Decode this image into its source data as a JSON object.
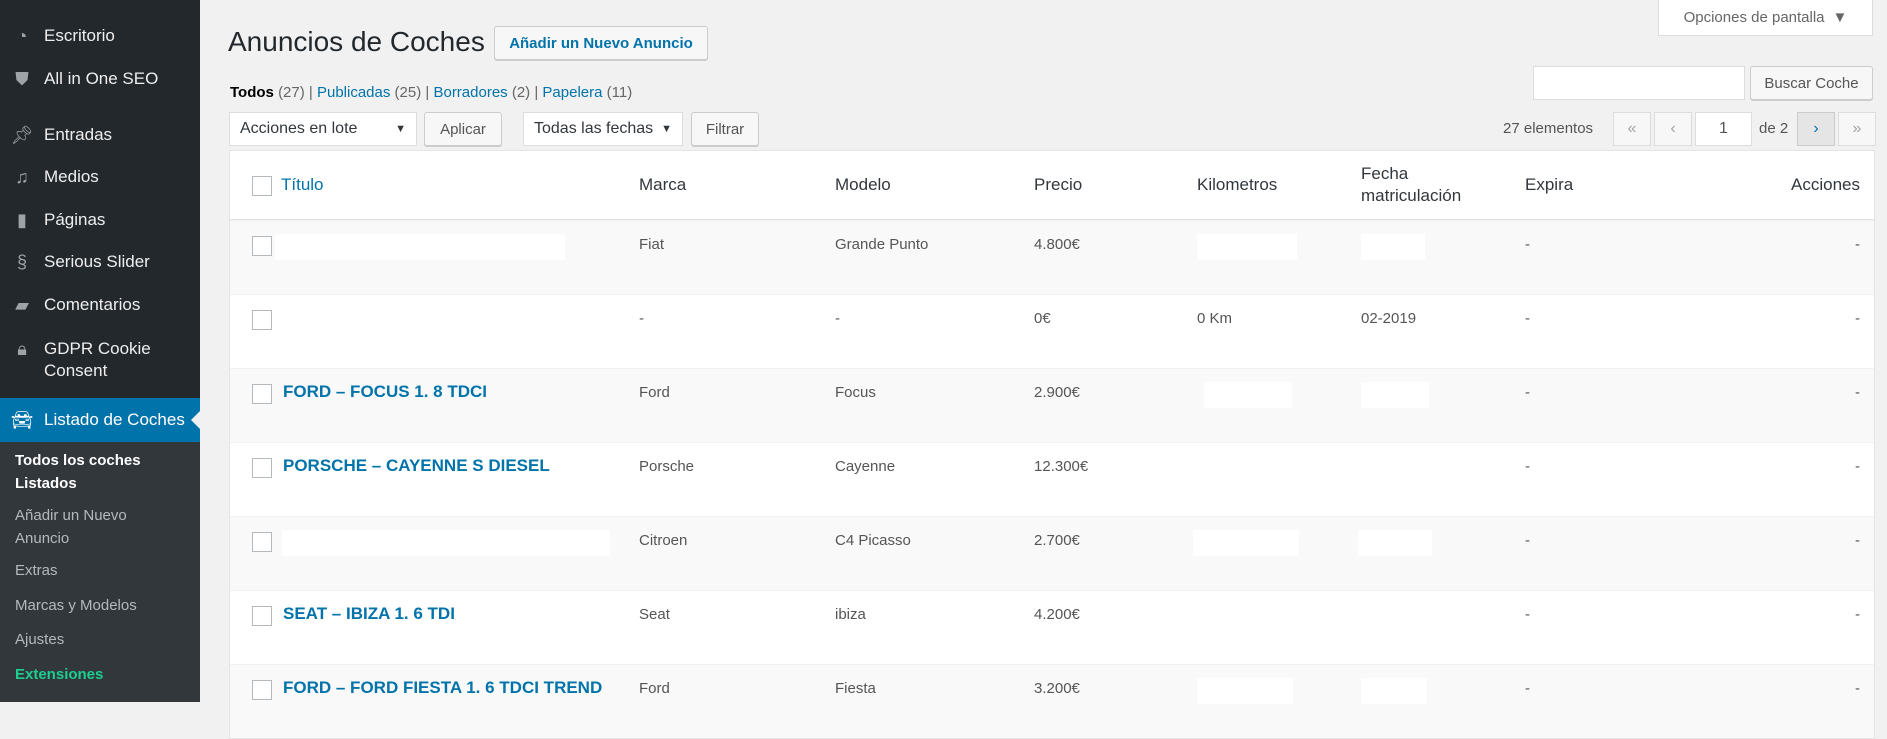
{
  "sidebar": {
    "items": [
      {
        "label": "Escritorio",
        "icon": "dashboard-icon"
      },
      {
        "label": "All in One SEO",
        "icon": "shield-icon"
      },
      {
        "label": "Entradas",
        "icon": "pin-icon"
      },
      {
        "label": "Medios",
        "icon": "media-icon"
      },
      {
        "label": "Páginas",
        "icon": "pages-icon"
      },
      {
        "label": "Serious Slider",
        "icon": "slider-icon"
      },
      {
        "label": "Comentarios",
        "icon": "comment-icon"
      },
      {
        "label": "GDPR Cookie Consent",
        "icon": "lock-icon"
      },
      {
        "label": "Listado de Coches",
        "icon": "car-icon",
        "active": true
      }
    ],
    "submenu": [
      "Todos los coches Listados",
      "Añadir un Nuevo Anuncio",
      "Extras",
      "Marcas y Modelos",
      "Ajustes",
      "Extensiones"
    ]
  },
  "header": {
    "title": "Anuncios de Coches",
    "add_new": "Añadir un Nuevo Anuncio",
    "screen_options": "Opciones de pantalla"
  },
  "views": [
    {
      "label": "Todos",
      "count": "(27)"
    },
    {
      "label": "Publicadas",
      "count": "(25)"
    },
    {
      "label": "Borradores",
      "count": "(2)"
    },
    {
      "label": "Papelera",
      "count": "(11)"
    }
  ],
  "toolbar": {
    "bulk": "Acciones en lote",
    "apply": "Aplicar",
    "dates": "Todas las fechas",
    "filter": "Filtrar",
    "search_button": "Buscar Coche",
    "search_value": "",
    "items": "27 elementos",
    "page": "1",
    "of": "de 2",
    "first": "«",
    "prev": "‹",
    "next": "›",
    "last": "»"
  },
  "columns": [
    "Título",
    "Marca",
    "Modelo",
    "Precio",
    "Kilometros",
    "Fecha matriculación",
    "Expira",
    "Acciones"
  ],
  "rows": [
    {
      "title": "",
      "marca": "Fiat",
      "modelo": "Grande Punto",
      "precio": "4.800€",
      "km": "",
      "fecha": "",
      "expira": "-",
      "acciones": "-"
    },
    {
      "title": "",
      "marca": "-",
      "modelo": "-",
      "precio": "0€",
      "km": "0 Km",
      "fecha": "02-2019",
      "expira": "-",
      "acciones": "-"
    },
    {
      "title": "FORD – FOCUS 1. 8 TDCI",
      "marca": "Ford",
      "modelo": "Focus",
      "precio": "2.900€",
      "km": "",
      "fecha": "",
      "expira": "-",
      "acciones": "-"
    },
    {
      "title": "PORSCHE – CAYENNE S DIESEL",
      "marca": "Porsche",
      "modelo": "Cayenne",
      "precio": "12.300€",
      "km": "",
      "fecha": "",
      "expira": "-",
      "acciones": "-"
    },
    {
      "title": "",
      "marca": "Citroen",
      "modelo": "C4 Picasso",
      "precio": "2.700€",
      "km": "",
      "fecha": "",
      "expira": "-",
      "acciones": "-"
    },
    {
      "title": "SEAT – IBIZA 1. 6 TDI",
      "marca": "Seat",
      "modelo": "ibiza",
      "precio": "4.200€",
      "km": "",
      "fecha": "",
      "expira": "-",
      "acciones": "-"
    },
    {
      "title": "FORD – FORD FIESTA 1. 6 TDCI TREND",
      "marca": "Ford",
      "modelo": "Fiesta",
      "precio": "3.200€",
      "km": "",
      "fecha": "",
      "expira": "-",
      "acciones": "-"
    }
  ]
}
